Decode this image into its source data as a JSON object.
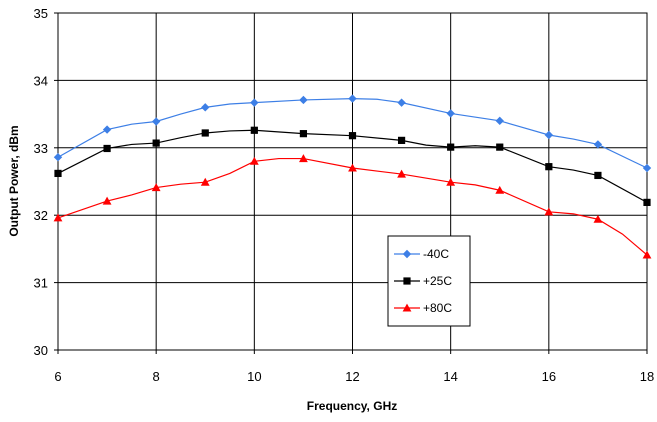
{
  "chart_data": {
    "type": "line",
    "title": "",
    "xlabel": "Frequency, GHz",
    "ylabel": "Output Power, dBm",
    "xlim": [
      6,
      18
    ],
    "ylim": [
      30,
      35
    ],
    "xticks": [
      6,
      8,
      10,
      12,
      14,
      16,
      18
    ],
    "yticks": [
      30,
      31,
      32,
      33,
      34,
      35
    ],
    "xtick_labels": [
      "6",
      "8",
      "10",
      "12",
      "14",
      "16",
      "18"
    ],
    "ytick_labels": [
      "30",
      "31",
      "32",
      "33",
      "34",
      "35"
    ],
    "grid": true,
    "legend_position": "lower-center-right",
    "series": [
      {
        "name": "-40C",
        "color": "#3d7fe6",
        "marker": "diamond",
        "points": [
          [
            6,
            32.86
          ],
          [
            7,
            33.27
          ],
          [
            7.5,
            33.35
          ],
          [
            8,
            33.39
          ],
          [
            8.5,
            33.5
          ],
          [
            9,
            33.6
          ],
          [
            9.5,
            33.65
          ],
          [
            10,
            33.67
          ],
          [
            11,
            33.71
          ],
          [
            12,
            33.73
          ],
          [
            12.5,
            33.72
          ],
          [
            13,
            33.67
          ],
          [
            14,
            33.51
          ],
          [
            15,
            33.4
          ],
          [
            16,
            33.19
          ],
          [
            16.5,
            33.13
          ],
          [
            17,
            33.05
          ],
          [
            18,
            32.7
          ]
        ]
      },
      {
        "name": "+25C",
        "color": "#000000",
        "marker": "square",
        "points": [
          [
            6,
            32.62
          ],
          [
            7,
            32.99
          ],
          [
            7.5,
            33.05
          ],
          [
            8,
            33.07
          ],
          [
            8.5,
            33.15
          ],
          [
            9,
            33.22
          ],
          [
            9.5,
            33.25
          ],
          [
            10,
            33.26
          ],
          [
            11,
            33.21
          ],
          [
            12,
            33.18
          ],
          [
            13,
            33.11
          ],
          [
            13.5,
            33.04
          ],
          [
            14,
            33.01
          ],
          [
            14.5,
            33.03
          ],
          [
            15,
            33.01
          ],
          [
            16,
            32.72
          ],
          [
            16.5,
            32.67
          ],
          [
            17,
            32.59
          ],
          [
            18,
            32.19
          ]
        ]
      },
      {
        "name": "+80C",
        "color": "#ff0000",
        "marker": "triangle",
        "points": [
          [
            6,
            31.96
          ],
          [
            7,
            32.21
          ],
          [
            7.5,
            32.3
          ],
          [
            8,
            32.41
          ],
          [
            8.5,
            32.46
          ],
          [
            9,
            32.49
          ],
          [
            9.5,
            32.62
          ],
          [
            10,
            32.8
          ],
          [
            10.5,
            32.84
          ],
          [
            11,
            32.84
          ],
          [
            12,
            32.7
          ],
          [
            13,
            32.61
          ],
          [
            14,
            32.49
          ],
          [
            14.5,
            32.45
          ],
          [
            15,
            32.37
          ],
          [
            16,
            32.05
          ],
          [
            16.5,
            32.02
          ],
          [
            17,
            31.94
          ],
          [
            17.5,
            31.72
          ],
          [
            18,
            31.41
          ]
        ]
      }
    ]
  }
}
